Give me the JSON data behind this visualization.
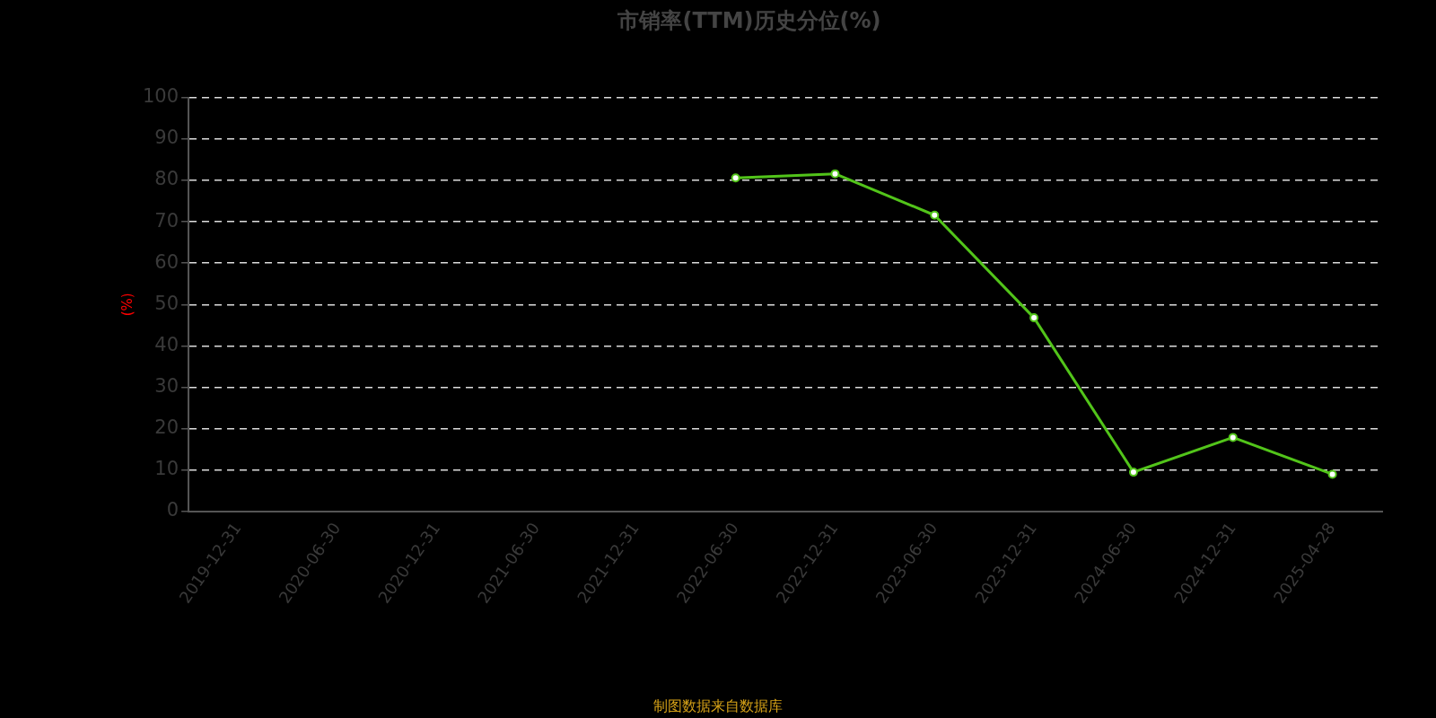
{
  "chart_data": {
    "type": "line",
    "title": "市销率(TTM)历史分位(%)",
    "ylabel": "(%)",
    "categories": [
      "2019-12-31",
      "2020-06-30",
      "2020-12-31",
      "2021-06-30",
      "2021-12-31",
      "2022-06-30",
      "2022-12-31",
      "2023-06-30",
      "2023-12-31",
      "2024-06-30",
      "2024-12-31",
      "2025-04-28"
    ],
    "series": [
      {
        "color": "#52c41a",
        "values": [
          null,
          null,
          null,
          null,
          null,
          80.6,
          81.6,
          71.6,
          46.8,
          9.5,
          17.9,
          9.0
        ]
      }
    ],
    "ylim": [
      0,
      100
    ],
    "yticks": [
      0,
      10,
      20,
      30,
      40,
      50,
      60,
      70,
      80,
      90,
      100
    ],
    "grid": "y",
    "legend": false,
    "marker": "circle",
    "line_style": "solid",
    "annotations": [
      "制图数据来自数据库"
    ]
  }
}
